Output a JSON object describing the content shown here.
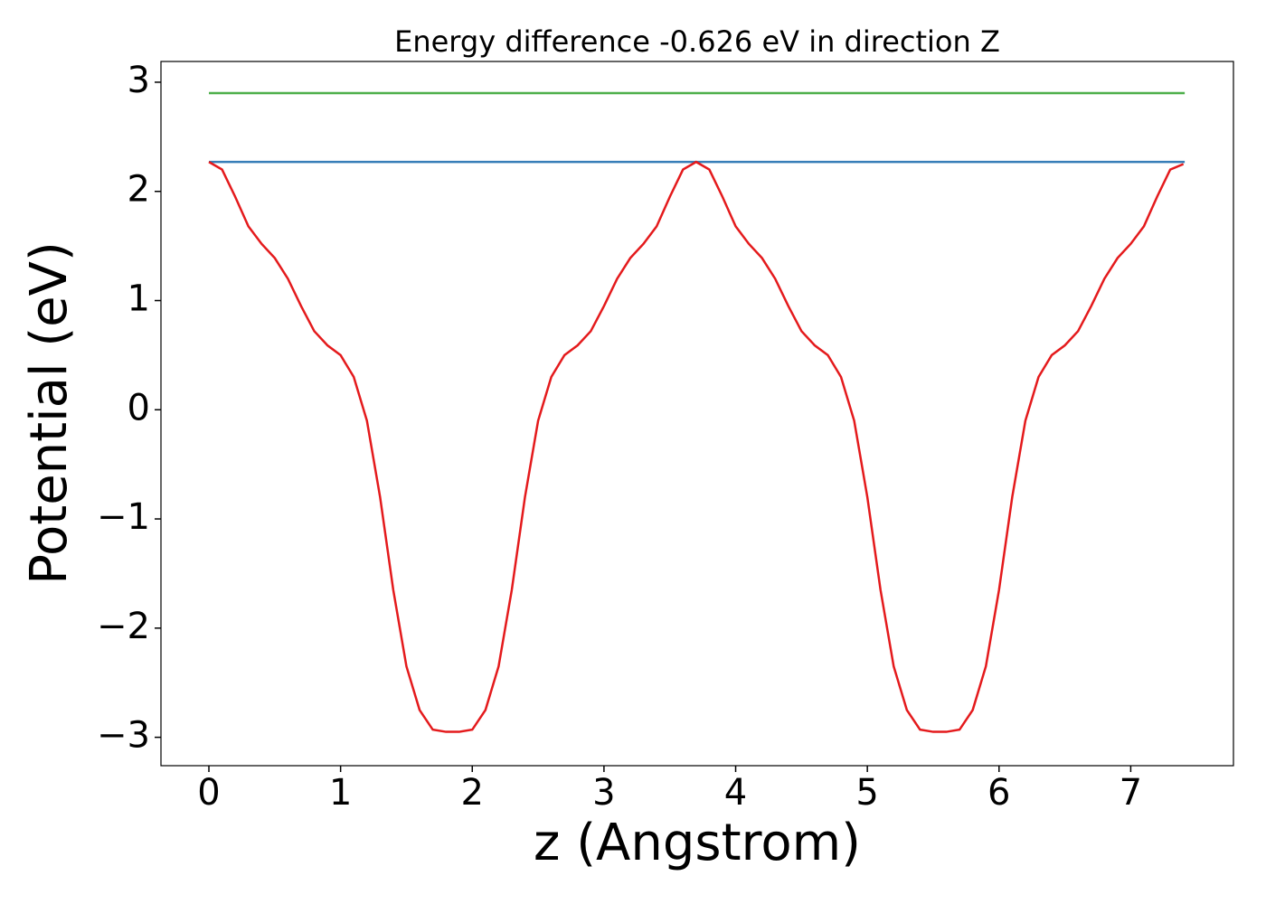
{
  "chart_data": {
    "type": "line",
    "title": "Energy difference -0.626 eV in direction Z",
    "xlabel": "z (Angstrom)",
    "ylabel": "Potential (eV)",
    "xlim": [
      -0.364,
      7.78
    ],
    "ylim": [
      -3.26,
      3.19
    ],
    "xticks": [
      0,
      1,
      2,
      3,
      4,
      5,
      6,
      7
    ],
    "yticks": [
      {
        "value": -3,
        "label": "−3"
      },
      {
        "value": -2,
        "label": "−2"
      },
      {
        "value": -1,
        "label": "−1"
      },
      0,
      1,
      2,
      3
    ],
    "grid": false,
    "series": [
      {
        "color": "#4daf4a",
        "x": [
          0,
          7.41
        ],
        "values": [
          2.9,
          2.9
        ]
      },
      {
        "color": "#377eb8",
        "x": [
          0,
          7.41
        ],
        "values": [
          2.27,
          2.27
        ]
      },
      {
        "color": "#e41a1c",
        "x": [
          0,
          0.1,
          0.2,
          0.3,
          0.4,
          0.5,
          0.6,
          0.7,
          0.8,
          0.9,
          1.0,
          1.1,
          1.2,
          1.3,
          1.4,
          1.5,
          1.6,
          1.7,
          1.8,
          1.9,
          2.0,
          2.1,
          2.2,
          2.3,
          2.4,
          2.5,
          2.6,
          2.7,
          2.8,
          2.9,
          3.0,
          3.1,
          3.2,
          3.3,
          3.4,
          3.5,
          3.6,
          3.7,
          3.8,
          3.9,
          4.0,
          4.1,
          4.2,
          4.3,
          4.4,
          4.5,
          4.6,
          4.7,
          4.8,
          4.9,
          5.0,
          5.1,
          5.2,
          5.3,
          5.4,
          5.5,
          5.6,
          5.7,
          5.8,
          5.9,
          6.0,
          6.1,
          6.2,
          6.3,
          6.4,
          6.5,
          6.6,
          6.7,
          6.8,
          6.9,
          7.0,
          7.1,
          7.2,
          7.3,
          7.4
        ],
        "values": [
          2.27,
          2.2,
          1.95,
          1.68,
          1.52,
          1.39,
          1.2,
          0.95,
          0.72,
          0.59,
          0.5,
          0.3,
          -0.1,
          -0.8,
          -1.65,
          -2.35,
          -2.75,
          -2.93,
          -2.95,
          -2.95,
          -2.93,
          -2.75,
          -2.35,
          -1.65,
          -0.8,
          -0.1,
          0.3,
          0.5,
          0.59,
          0.72,
          0.95,
          1.2,
          1.39,
          1.52,
          1.68,
          1.95,
          2.2,
          2.27,
          2.2,
          1.95,
          1.68,
          1.52,
          1.39,
          1.2,
          0.95,
          0.72,
          0.59,
          0.5,
          0.3,
          -0.1,
          -0.8,
          -1.65,
          -2.35,
          -2.75,
          -2.93,
          -2.95,
          -2.95,
          -2.93,
          -2.75,
          -2.35,
          -1.65,
          -0.8,
          -0.1,
          0.3,
          0.5,
          0.59,
          0.72,
          0.95,
          1.2,
          1.39,
          1.52,
          1.68,
          1.95,
          2.2,
          2.25
        ]
      }
    ]
  }
}
